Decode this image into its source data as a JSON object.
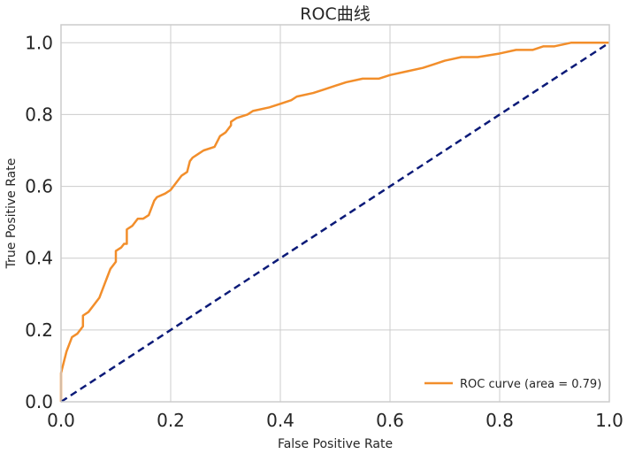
{
  "chart_data": {
    "type": "line",
    "title": "ROC曲线",
    "xlabel": "False Positive Rate",
    "ylabel": "True Positive Rate",
    "xlim": [
      0.0,
      1.0
    ],
    "ylim": [
      0.0,
      1.05
    ],
    "xticks": [
      "0.0",
      "0.2",
      "0.4",
      "0.6",
      "0.8",
      "1.0"
    ],
    "yticks": [
      "0.0",
      "0.2",
      "0.4",
      "0.6",
      "0.8",
      "1.0"
    ],
    "grid": true,
    "legend_position": "bottom-right",
    "colors": {
      "roc": "#f28e2b",
      "diagonal": "#0b1a78",
      "grid": "#cccccc",
      "frame": "#cccccc"
    },
    "series": [
      {
        "name": "ROC curve (area = 0.79)",
        "style": "solid",
        "points": [
          [
            0.0,
            0.0
          ],
          [
            0.0,
            0.08
          ],
          [
            0.005,
            0.11
          ],
          [
            0.01,
            0.14
          ],
          [
            0.015,
            0.16
          ],
          [
            0.02,
            0.18
          ],
          [
            0.03,
            0.19
          ],
          [
            0.04,
            0.21
          ],
          [
            0.04,
            0.24
          ],
          [
            0.05,
            0.25
          ],
          [
            0.06,
            0.27
          ],
          [
            0.07,
            0.29
          ],
          [
            0.075,
            0.31
          ],
          [
            0.08,
            0.33
          ],
          [
            0.085,
            0.35
          ],
          [
            0.09,
            0.37
          ],
          [
            0.1,
            0.39
          ],
          [
            0.1,
            0.42
          ],
          [
            0.11,
            0.43
          ],
          [
            0.115,
            0.44
          ],
          [
            0.12,
            0.44
          ],
          [
            0.12,
            0.48
          ],
          [
            0.13,
            0.49
          ],
          [
            0.14,
            0.51
          ],
          [
            0.15,
            0.51
          ],
          [
            0.16,
            0.52
          ],
          [
            0.165,
            0.54
          ],
          [
            0.17,
            0.56
          ],
          [
            0.175,
            0.57
          ],
          [
            0.19,
            0.58
          ],
          [
            0.2,
            0.59
          ],
          [
            0.21,
            0.61
          ],
          [
            0.22,
            0.63
          ],
          [
            0.23,
            0.64
          ],
          [
            0.235,
            0.67
          ],
          [
            0.24,
            0.68
          ],
          [
            0.25,
            0.69
          ],
          [
            0.26,
            0.7
          ],
          [
            0.28,
            0.71
          ],
          [
            0.29,
            0.74
          ],
          [
            0.3,
            0.75
          ],
          [
            0.31,
            0.77
          ],
          [
            0.31,
            0.78
          ],
          [
            0.32,
            0.79
          ],
          [
            0.34,
            0.8
          ],
          [
            0.35,
            0.81
          ],
          [
            0.38,
            0.82
          ],
          [
            0.4,
            0.83
          ],
          [
            0.42,
            0.84
          ],
          [
            0.43,
            0.85
          ],
          [
            0.46,
            0.86
          ],
          [
            0.48,
            0.87
          ],
          [
            0.5,
            0.88
          ],
          [
            0.52,
            0.89
          ],
          [
            0.55,
            0.9
          ],
          [
            0.58,
            0.9
          ],
          [
            0.6,
            0.91
          ],
          [
            0.63,
            0.92
          ],
          [
            0.66,
            0.93
          ],
          [
            0.68,
            0.94
          ],
          [
            0.7,
            0.95
          ],
          [
            0.73,
            0.96
          ],
          [
            0.76,
            0.96
          ],
          [
            0.8,
            0.97
          ],
          [
            0.83,
            0.98
          ],
          [
            0.86,
            0.98
          ],
          [
            0.88,
            0.99
          ],
          [
            0.9,
            0.99
          ],
          [
            0.93,
            1.0
          ],
          [
            0.97,
            1.0
          ],
          [
            1.0,
            1.0
          ]
        ]
      },
      {
        "name": "",
        "style": "dashed",
        "points": [
          [
            0.0,
            0.0
          ],
          [
            1.0,
            1.0
          ]
        ]
      }
    ]
  }
}
